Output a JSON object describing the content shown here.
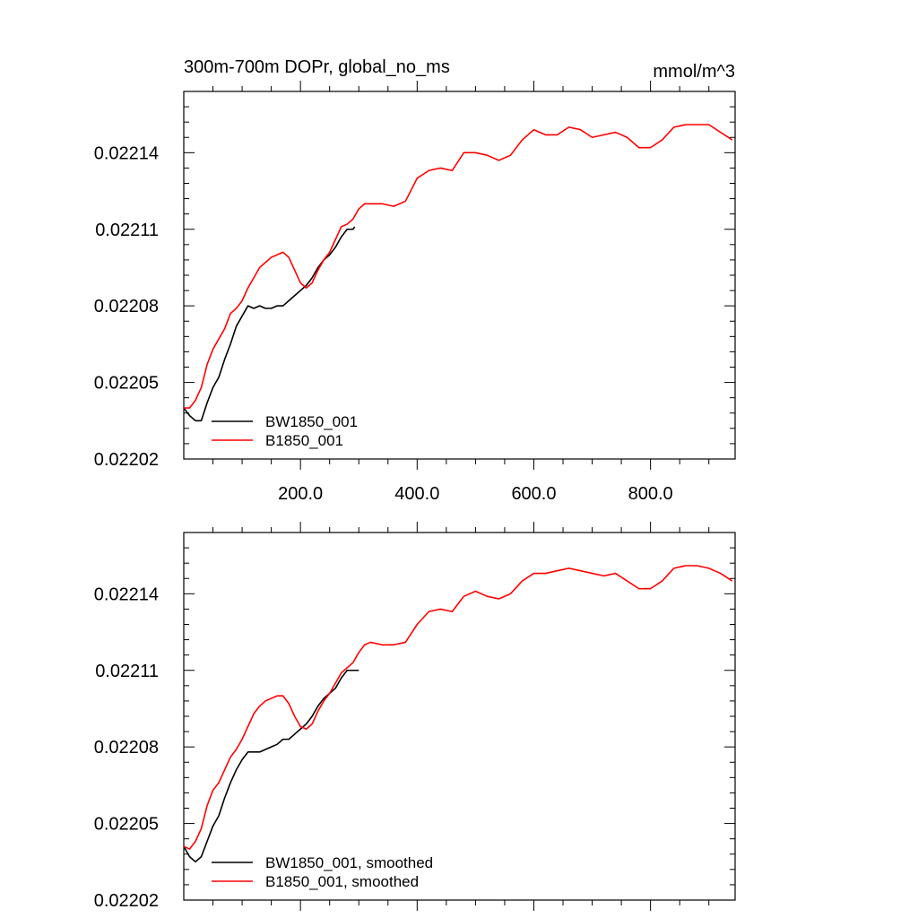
{
  "chart_data": [
    {
      "type": "line",
      "title": "300m-700m DOPr, global_no_ms",
      "units": "mmol/m^3",
      "xlim": [
        0,
        945
      ],
      "ylim": [
        0.02202,
        0.022164
      ],
      "yticks": [
        {
          "value": 0.02202,
          "label": "0.02202"
        },
        {
          "value": 0.02205,
          "label": "0.02205"
        },
        {
          "value": 0.02208,
          "label": "0.02208"
        },
        {
          "value": 0.02211,
          "label": "0.02211"
        },
        {
          "value": 0.02214,
          "label": "0.02214"
        }
      ],
      "xticks": [
        {
          "value": 200,
          "label": "200.0"
        },
        {
          "value": 400,
          "label": "400.0"
        },
        {
          "value": 600,
          "label": "600.0"
        },
        {
          "value": 800,
          "label": "800.0"
        }
      ],
      "legend_position": "bottom-left",
      "series": [
        {
          "name": "BW1850_001",
          "color": "#000000",
          "x": [
            0,
            10,
            20,
            30,
            40,
            50,
            60,
            70,
            80,
            90,
            100,
            110,
            120,
            130,
            140,
            150,
            160,
            170,
            180,
            190,
            200,
            210,
            220,
            230,
            240,
            250,
            260,
            270,
            280,
            290,
            293
          ],
          "y": [
            0.02204,
            0.022037,
            0.022035,
            0.022035,
            0.022042,
            0.022048,
            0.022052,
            0.022059,
            0.022065,
            0.022072,
            0.022076,
            0.02208,
            0.022079,
            0.02208,
            0.022079,
            0.022079,
            0.02208,
            0.02208,
            0.022082,
            0.022084,
            0.022086,
            0.022088,
            0.022091,
            0.022095,
            0.022098,
            0.0221,
            0.022103,
            0.022107,
            0.02211,
            0.02211,
            0.022111
          ]
        },
        {
          "name": "B1850_001",
          "color": "#ff0000",
          "x": [
            0,
            10,
            20,
            30,
            40,
            50,
            60,
            70,
            80,
            90,
            100,
            110,
            120,
            130,
            140,
            150,
            160,
            170,
            180,
            190,
            200,
            210,
            220,
            230,
            240,
            250,
            260,
            270,
            280,
            290,
            300,
            310,
            320,
            340,
            360,
            380,
            400,
            420,
            440,
            460,
            480,
            500,
            520,
            540,
            560,
            580,
            600,
            620,
            640,
            660,
            680,
            700,
            720,
            740,
            760,
            780,
            800,
            820,
            840,
            860,
            880,
            900,
            920,
            940
          ],
          "y": [
            0.02204,
            0.02204,
            0.022043,
            0.022048,
            0.022057,
            0.022063,
            0.022067,
            0.022071,
            0.022077,
            0.022079,
            0.022082,
            0.022087,
            0.022091,
            0.022095,
            0.022097,
            0.022099,
            0.0221,
            0.022101,
            0.022099,
            0.022094,
            0.022089,
            0.022087,
            0.022089,
            0.022094,
            0.022098,
            0.022101,
            0.022106,
            0.022111,
            0.022112,
            0.022114,
            0.022118,
            0.02212,
            0.02212,
            0.02212,
            0.022119,
            0.022121,
            0.02213,
            0.022133,
            0.022134,
            0.022133,
            0.02214,
            0.02214,
            0.022139,
            0.022137,
            0.022139,
            0.022145,
            0.022149,
            0.022147,
            0.022147,
            0.02215,
            0.022149,
            0.022146,
            0.022147,
            0.022148,
            0.022146,
            0.022142,
            0.022142,
            0.022145,
            0.02215,
            0.022151,
            0.022151,
            0.022151,
            0.022148,
            0.022145
          ]
        }
      ]
    },
    {
      "type": "line",
      "title": "",
      "units": "",
      "xlim": [
        0,
        945
      ],
      "ylim": [
        0.02202,
        0.022164
      ],
      "yticks": [
        {
          "value": 0.02202,
          "label": "0.02202"
        },
        {
          "value": 0.02205,
          "label": "0.02205"
        },
        {
          "value": 0.02208,
          "label": "0.02208"
        },
        {
          "value": 0.02211,
          "label": "0.02211"
        },
        {
          "value": 0.02214,
          "label": "0.02214"
        }
      ],
      "xticks": [
        {
          "value": 200,
          "label": ""
        },
        {
          "value": 400,
          "label": ""
        },
        {
          "value": 600,
          "label": ""
        },
        {
          "value": 800,
          "label": ""
        }
      ],
      "legend_position": "bottom-left",
      "series": [
        {
          "name": "BW1850_001, smoothed",
          "color": "#000000",
          "x": [
            0,
            10,
            20,
            30,
            40,
            50,
            60,
            70,
            80,
            90,
            100,
            110,
            120,
            130,
            140,
            150,
            160,
            170,
            180,
            190,
            200,
            210,
            220,
            230,
            240,
            250,
            260,
            270,
            280,
            290,
            300
          ],
          "y": [
            0.022041,
            0.022037,
            0.022035,
            0.022037,
            0.022043,
            0.022049,
            0.022053,
            0.02206,
            0.022066,
            0.022071,
            0.022075,
            0.022078,
            0.022078,
            0.022078,
            0.022079,
            0.02208,
            0.022081,
            0.022083,
            0.022083,
            0.022085,
            0.022087,
            0.022089,
            0.022092,
            0.022096,
            0.022099,
            0.022101,
            0.022103,
            0.022107,
            0.02211,
            0.02211,
            0.02211
          ]
        },
        {
          "name": "B1850_001, smoothed",
          "color": "#ff0000",
          "x": [
            0,
            10,
            20,
            30,
            40,
            50,
            60,
            70,
            80,
            90,
            100,
            110,
            120,
            130,
            140,
            150,
            160,
            170,
            180,
            190,
            200,
            210,
            220,
            230,
            240,
            250,
            260,
            270,
            280,
            290,
            300,
            310,
            320,
            340,
            360,
            380,
            400,
            420,
            440,
            460,
            480,
            500,
            520,
            540,
            560,
            580,
            600,
            620,
            640,
            660,
            680,
            700,
            720,
            740,
            760,
            780,
            800,
            820,
            840,
            860,
            880,
            900,
            920,
            940
          ],
          "y": [
            0.022041,
            0.02204,
            0.022043,
            0.022048,
            0.022057,
            0.022063,
            0.022066,
            0.022071,
            0.022076,
            0.022079,
            0.022083,
            0.022088,
            0.022093,
            0.022096,
            0.022098,
            0.022099,
            0.0221,
            0.0221,
            0.022097,
            0.022092,
            0.022088,
            0.022087,
            0.022089,
            0.022094,
            0.022098,
            0.022101,
            0.022105,
            0.022109,
            0.022111,
            0.022113,
            0.022117,
            0.02212,
            0.022121,
            0.02212,
            0.02212,
            0.022121,
            0.022128,
            0.022133,
            0.022134,
            0.022133,
            0.022139,
            0.022141,
            0.022139,
            0.022138,
            0.02214,
            0.022145,
            0.022148,
            0.022148,
            0.022149,
            0.02215,
            0.022149,
            0.022148,
            0.022147,
            0.022148,
            0.022145,
            0.022142,
            0.022142,
            0.022145,
            0.02215,
            0.022151,
            0.022151,
            0.02215,
            0.022148,
            0.022145
          ]
        }
      ]
    }
  ]
}
